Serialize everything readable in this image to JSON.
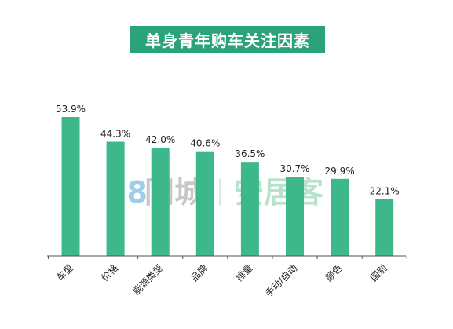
{
  "title": "单身青年购车关注因素",
  "watermark": {
    "brand_num": "58",
    "brand_name": "同城",
    "brand_sub": "安居客"
  },
  "colors": {
    "bar": "#3db88a",
    "title_bg": "#2aa37d",
    "axis": "#555555",
    "wm_blue": "#4fa3d8",
    "wm_orange": "#f4a460",
    "wm_gray": "#9a9a9a",
    "wm_green": "#7fcca3"
  },
  "chart_data": {
    "type": "bar",
    "title": "单身青年购车关注因素",
    "categories": [
      "车型",
      "价格",
      "能源类型",
      "品牌",
      "排量",
      "手动/自动",
      "颜色",
      "国别"
    ],
    "values": [
      53.9,
      44.3,
      42.0,
      40.6,
      36.5,
      30.7,
      29.9,
      22.1
    ],
    "value_labels": [
      "53.9%",
      "44.3%",
      "42.0%",
      "40.6%",
      "36.5%",
      "30.7%",
      "29.9%",
      "22.1%"
    ],
    "unit": "%",
    "ylim": [
      0,
      60
    ],
    "grid": false,
    "legend": "none"
  }
}
